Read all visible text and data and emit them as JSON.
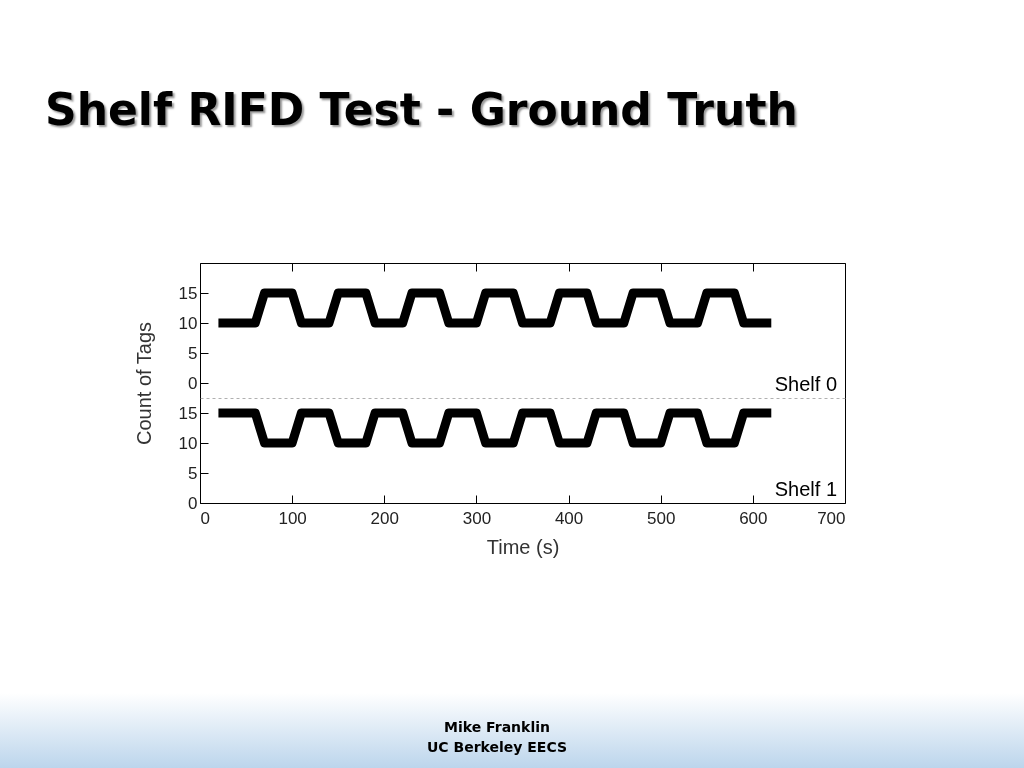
{
  "chart_data": [
    {
      "type": "line",
      "title": "Shelf RIFD Test - Ground Truth",
      "ylabel": "Count of Tags",
      "x": [
        20,
        60,
        70,
        100,
        110,
        140,
        150,
        180,
        190,
        220,
        230,
        260,
        270,
        300,
        310,
        340,
        350,
        380,
        390,
        420,
        430,
        460,
        470,
        500,
        510,
        540,
        550,
        580,
        590,
        620
      ],
      "series": [
        {
          "name": "Shelf 0",
          "color": "#000000",
          "values": [
            10,
            10,
            15,
            15,
            10,
            10,
            15,
            15,
            10,
            10,
            15,
            15,
            10,
            10,
            15,
            15,
            10,
            10,
            15,
            15,
            10,
            10,
            15,
            15,
            10,
            10,
            15,
            15,
            10,
            10
          ]
        }
      ],
      "xlim": [
        0,
        700
      ],
      "xticks": [
        0,
        100,
        200,
        300,
        400,
        500,
        600,
        700
      ],
      "ylim": [
        -2.5,
        20
      ],
      "yticks": [
        0,
        5,
        10,
        15
      ],
      "tick_labels": "y",
      "line_style": "solid"
    },
    {
      "type": "line",
      "xlabel": "Time (s)",
      "x": [
        20,
        60,
        70,
        100,
        110,
        140,
        150,
        180,
        190,
        220,
        230,
        260,
        270,
        300,
        310,
        340,
        350,
        380,
        390,
        420,
        430,
        460,
        470,
        500,
        510,
        540,
        550,
        580,
        590,
        620
      ],
      "series": [
        {
          "name": "Shelf 1",
          "color": "#000000",
          "values": [
            15,
            15,
            10,
            10,
            15,
            15,
            10,
            10,
            15,
            15,
            10,
            10,
            15,
            15,
            10,
            10,
            15,
            15,
            10,
            10,
            15,
            15,
            10,
            10,
            15,
            15,
            10,
            10,
            15,
            15
          ]
        }
      ],
      "xlim": [
        0,
        700
      ],
      "xticks": [
        0,
        100,
        200,
        300,
        400,
        500,
        600,
        700
      ],
      "ylim": [
        0,
        17.5
      ],
      "yticks": [
        0,
        5,
        10,
        15
      ],
      "line_style": "solid",
      "annotations": [
        "Mike Franklin",
        "UC Berkeley EECS"
      ]
    }
  ]
}
